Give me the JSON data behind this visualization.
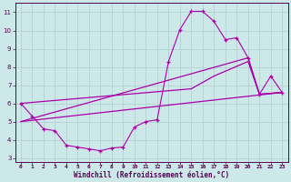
{
  "background_color": "#cce8e8",
  "grid_color": "#b0cccc",
  "line_color": "#aa00aa",
  "marker_color": "#aa00aa",
  "xlabel": "Windchill (Refroidissement éolien,°C)",
  "xlim": [
    -0.5,
    23.5
  ],
  "ylim": [
    2.8,
    11.5
  ],
  "yticks": [
    3,
    4,
    5,
    6,
    7,
    8,
    9,
    10,
    11
  ],
  "xticks": [
    0,
    1,
    2,
    3,
    4,
    5,
    6,
    7,
    8,
    9,
    10,
    11,
    12,
    13,
    14,
    15,
    16,
    17,
    18,
    19,
    20,
    21,
    22,
    23
  ],
  "line1_x": [
    0,
    1,
    2,
    3,
    4,
    5,
    6,
    7,
    8,
    9,
    10,
    11,
    12,
    13,
    14,
    15,
    16,
    17,
    18,
    19,
    20,
    21,
    22,
    23
  ],
  "line1_y": [
    6.0,
    5.3,
    4.6,
    4.5,
    3.7,
    3.6,
    3.5,
    3.4,
    3.55,
    3.6,
    4.7,
    5.0,
    5.1,
    8.3,
    10.05,
    11.05,
    11.05,
    10.5,
    9.5,
    9.6,
    8.5,
    6.5,
    7.5,
    6.6
  ],
  "line2_x": [
    0,
    23
  ],
  "line2_y": [
    5.0,
    6.6
  ],
  "line3_x": [
    0,
    20,
    21,
    23
  ],
  "line3_y": [
    5.0,
    8.5,
    6.5,
    6.6
  ],
  "line4_x": [
    0,
    15,
    17,
    20,
    21,
    23
  ],
  "line4_y": [
    6.0,
    6.8,
    7.5,
    8.3,
    6.5,
    6.6
  ]
}
